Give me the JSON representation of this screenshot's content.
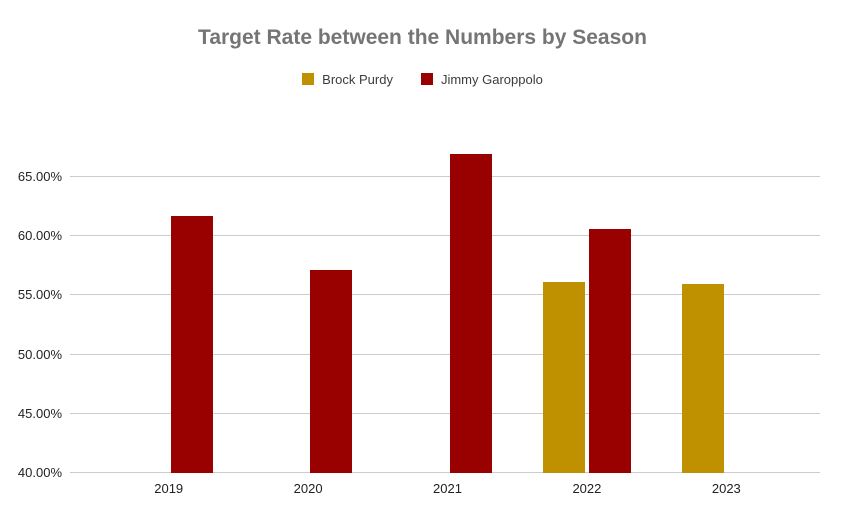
{
  "chart_data": {
    "type": "bar",
    "title": "Target Rate between the Numbers by Season",
    "categories": [
      "2019",
      "2020",
      "2021",
      "2022",
      "2023"
    ],
    "series": [
      {
        "name": "Brock Purdy",
        "color": "#BF9000",
        "values": [
          null,
          null,
          null,
          56.1,
          56.0
        ]
      },
      {
        "name": "Jimmy Garoppolo",
        "color": "#990000",
        "values": [
          61.7,
          57.1,
          66.9,
          60.6,
          null
        ]
      }
    ],
    "xlabel": "",
    "ylabel": "",
    "unit": "%",
    "y_ticks": [
      {
        "value": 40,
        "label": "40.00%"
      },
      {
        "value": 45,
        "label": "45.00%"
      },
      {
        "value": 50,
        "label": "50.00%"
      },
      {
        "value": 55,
        "label": "55.00%"
      },
      {
        "value": 60,
        "label": "60.00%"
      },
      {
        "value": 65,
        "label": "65.00%"
      }
    ],
    "ylim": [
      40,
      68.2
    ],
    "grid": true,
    "legend_position": "top",
    "colors": {
      "background": "#FFFFFF",
      "title_text": "#757575",
      "axis_text": "#222222",
      "legend_text": "#3C3C3C",
      "gridline": "#CCCCCC"
    }
  }
}
